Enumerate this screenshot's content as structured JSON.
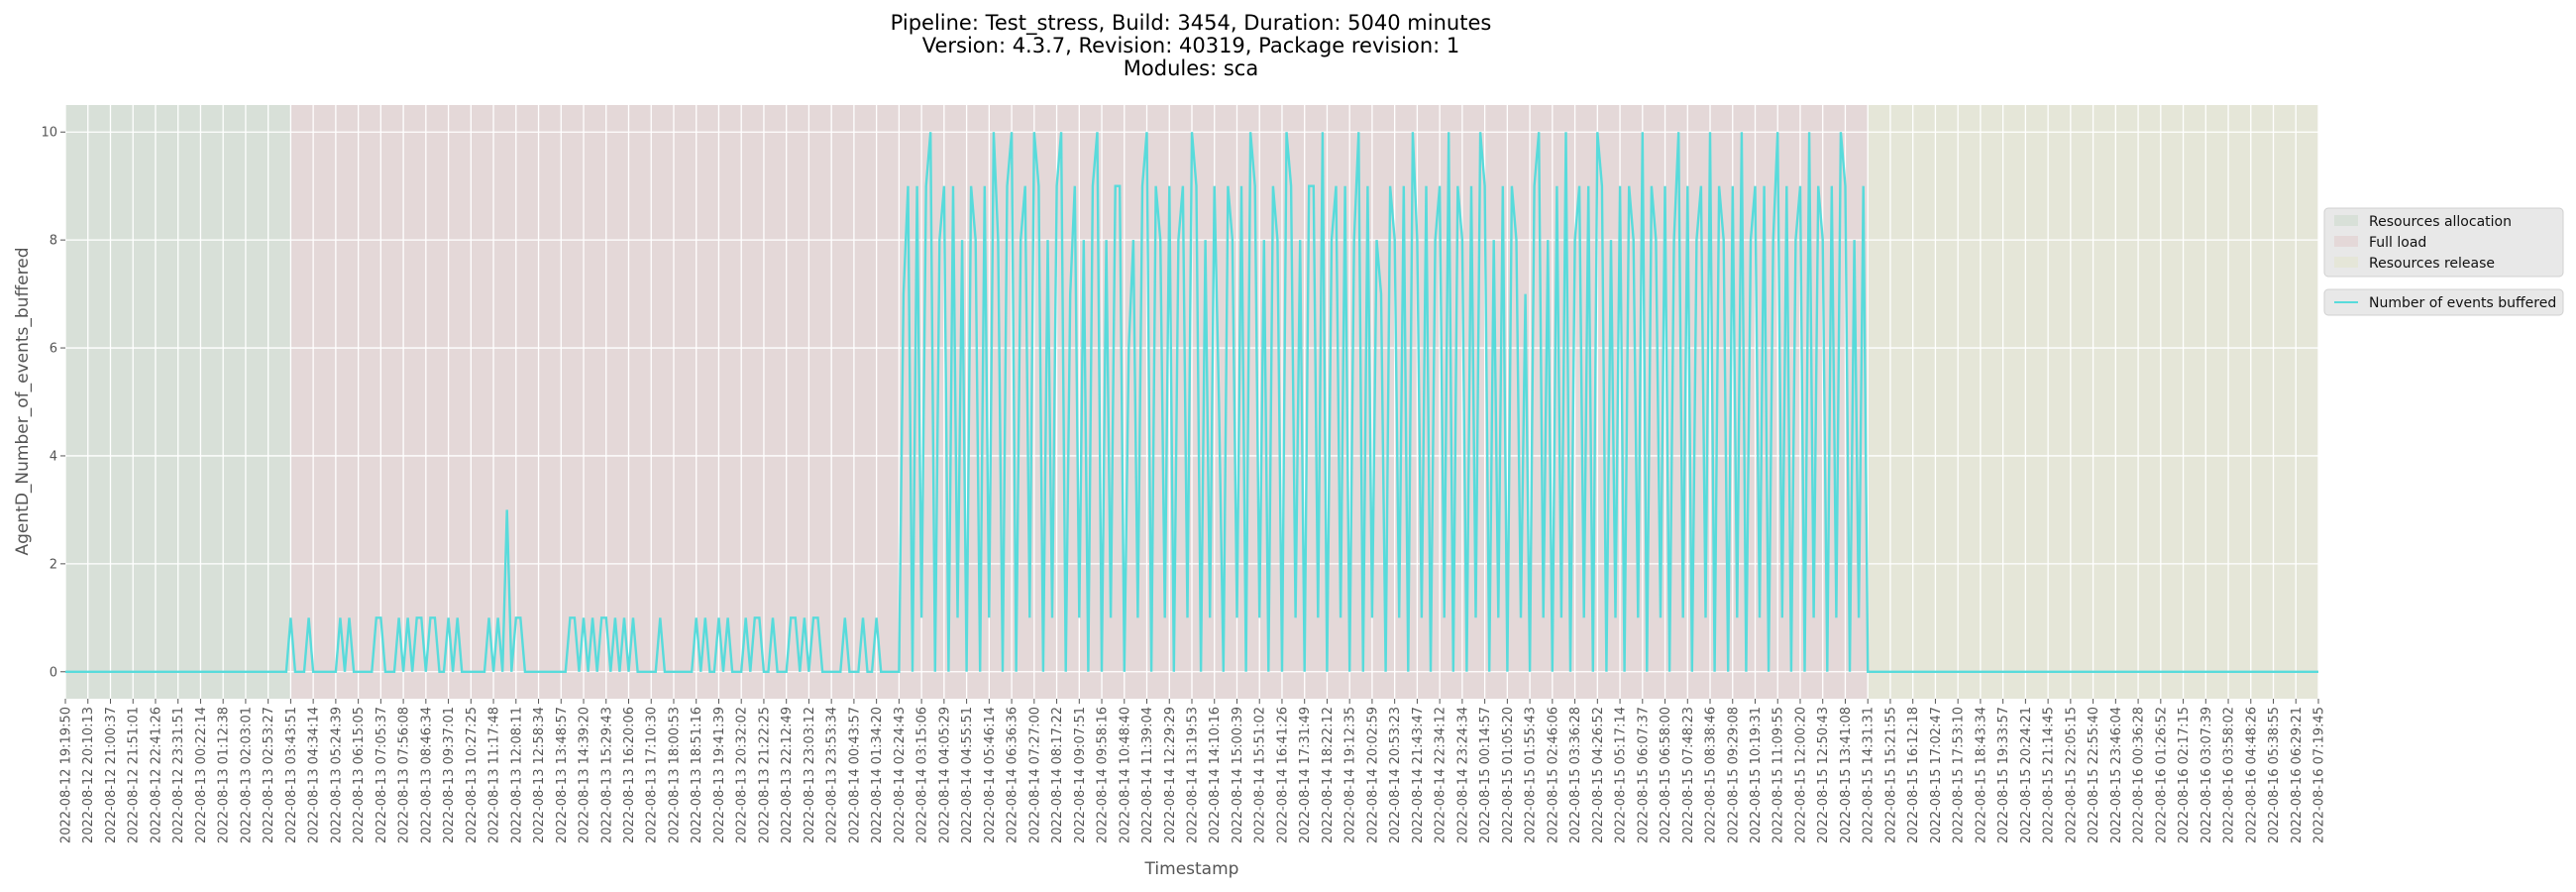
{
  "chart_data": {
    "type": "line",
    "title_lines": [
      "Pipeline: Test_stress, Build: 3454, Duration: 5040 minutes",
      "Version: 4.3.7, Revision: 40319, Package revision: 1",
      "Modules: sca"
    ],
    "xlabel": "Timestamp",
    "ylabel": "AgentD_Number_of_events_buffered",
    "ylim": [
      -0.5,
      10.5
    ],
    "yticks": [
      0,
      2,
      4,
      6,
      8,
      10
    ],
    "grid": true,
    "legend_placement": "center-right outside",
    "line_color": "#58dbdb",
    "x_tick_labels": [
      "2022-08-12 19:19:50",
      "2022-08-12 20:10:13",
      "2022-08-12 21:00:37",
      "2022-08-12 21:51:01",
      "2022-08-12 22:41:26",
      "2022-08-12 23:31:51",
      "2022-08-13 00:22:14",
      "2022-08-13 01:12:38",
      "2022-08-13 02:03:01",
      "2022-08-13 02:53:27",
      "2022-08-13 03:43:51",
      "2022-08-13 04:34:14",
      "2022-08-13 05:24:39",
      "2022-08-13 06:15:05",
      "2022-08-13 07:05:37",
      "2022-08-13 07:56:08",
      "2022-08-13 08:46:34",
      "2022-08-13 09:37:01",
      "2022-08-13 10:27:25",
      "2022-08-13 11:17:48",
      "2022-08-13 12:08:11",
      "2022-08-13 12:58:34",
      "2022-08-13 13:48:57",
      "2022-08-13 14:39:20",
      "2022-08-13 15:29:43",
      "2022-08-13 16:20:06",
      "2022-08-13 17:10:30",
      "2022-08-13 18:00:53",
      "2022-08-13 18:51:16",
      "2022-08-13 19:41:39",
      "2022-08-13 20:32:02",
      "2022-08-13 21:22:25",
      "2022-08-13 22:12:49",
      "2022-08-13 23:03:12",
      "2022-08-13 23:53:34",
      "2022-08-14 00:43:57",
      "2022-08-14 01:34:20",
      "2022-08-14 02:24:43",
      "2022-08-14 03:15:06",
      "2022-08-14 04:05:29",
      "2022-08-14 04:55:51",
      "2022-08-14 05:46:14",
      "2022-08-14 06:36:36",
      "2022-08-14 07:27:00",
      "2022-08-14 08:17:22",
      "2022-08-14 09:07:51",
      "2022-08-14 09:58:16",
      "2022-08-14 10:48:40",
      "2022-08-14 11:39:04",
      "2022-08-14 12:29:29",
      "2022-08-14 13:19:53",
      "2022-08-14 14:10:16",
      "2022-08-14 15:00:39",
      "2022-08-14 15:51:02",
      "2022-08-14 16:41:26",
      "2022-08-14 17:31:49",
      "2022-08-14 18:22:12",
      "2022-08-14 19:12:35",
      "2022-08-14 20:02:59",
      "2022-08-14 20:53:23",
      "2022-08-14 21:43:47",
      "2022-08-14 22:34:12",
      "2022-08-14 23:24:34",
      "2022-08-15 00:14:57",
      "2022-08-15 01:05:20",
      "2022-08-15 01:55:43",
      "2022-08-15 02:46:06",
      "2022-08-15 03:36:28",
      "2022-08-15 04:26:52",
      "2022-08-15 05:17:14",
      "2022-08-15 06:07:37",
      "2022-08-15 06:58:00",
      "2022-08-15 07:48:23",
      "2022-08-15 08:38:46",
      "2022-08-15 09:29:08",
      "2022-08-15 10:19:31",
      "2022-08-15 11:09:55",
      "2022-08-15 12:00:20",
      "2022-08-15 12:50:43",
      "2022-08-15 13:41:08",
      "2022-08-15 14:31:31",
      "2022-08-15 15:21:55",
      "2022-08-15 16:12:18",
      "2022-08-15 17:02:47",
      "2022-08-15 17:53:10",
      "2022-08-15 18:43:34",
      "2022-08-15 19:33:57",
      "2022-08-15 20:24:21",
      "2022-08-15 21:14:45",
      "2022-08-15 22:05:15",
      "2022-08-15 22:55:40",
      "2022-08-15 23:46:04",
      "2022-08-16 00:36:28",
      "2022-08-16 01:26:52",
      "2022-08-16 02:17:15",
      "2022-08-16 03:07:39",
      "2022-08-16 03:58:02",
      "2022-08-16 04:48:26",
      "2022-08-16 05:38:55",
      "2022-08-16 06:29:21",
      "2022-08-16 07:19:45"
    ],
    "phases": [
      {
        "name": "Resources allocation",
        "from": "2022-08-12 19:19:50",
        "to": "2022-08-13 03:43:51",
        "color": "#d8e0d8"
      },
      {
        "name": "Full load",
        "from": "2022-08-13 03:43:51",
        "to": "2022-08-15 14:31:31",
        "color": "#e4d8d8"
      },
      {
        "name": "Resources release",
        "from": "2022-08-15 14:31:31",
        "to": "2022-08-16 07:19:45",
        "color": "#e5e6d8"
      }
    ],
    "series": [
      {
        "name": "Number of events buffered",
        "values": [
          0,
          0,
          0,
          0,
          0,
          0,
          0,
          0,
          0,
          0,
          0,
          0,
          0,
          0,
          0,
          0,
          0,
          0,
          0,
          0,
          0,
          0,
          0,
          0,
          0,
          0,
          0,
          0,
          0,
          0,
          0,
          0,
          0,
          0,
          0,
          0,
          0,
          0,
          0,
          0,
          0,
          0,
          0,
          0,
          0,
          0,
          0,
          0,
          0,
          0,
          1,
          0,
          0,
          0,
          1,
          0,
          0,
          0,
          0,
          0,
          0,
          1,
          0,
          1,
          0,
          0,
          0,
          0,
          0,
          1,
          1,
          0,
          0,
          0,
          1,
          0,
          1,
          0,
          1,
          1,
          0,
          1,
          1,
          0,
          0,
          1,
          0,
          1,
          0,
          0,
          0,
          0,
          0,
          0,
          1,
          0,
          1,
          0,
          3,
          0,
          1,
          1,
          0,
          0,
          0,
          0,
          0,
          0,
          0,
          0,
          0,
          0,
          1,
          1,
          0,
          1,
          0,
          1,
          0,
          1,
          1,
          0,
          1,
          0,
          1,
          0,
          1,
          0,
          0,
          0,
          0,
          0,
          1,
          0,
          0,
          0,
          0,
          0,
          0,
          0,
          1,
          0,
          1,
          0,
          0,
          1,
          0,
          1,
          0,
          0,
          0,
          1,
          0,
          1,
          1,
          0,
          0,
          1,
          0,
          0,
          0,
          1,
          1,
          0,
          1,
          0,
          1,
          1,
          0,
          0,
          0,
          0,
          0,
          1,
          0,
          0,
          0,
          1,
          0,
          0,
          1,
          0,
          0,
          0,
          0,
          0,
          7,
          9,
          0,
          9,
          1,
          9,
          10,
          0,
          8,
          9,
          0,
          9,
          1,
          8,
          0,
          9,
          8,
          0,
          9,
          1,
          10,
          8,
          0,
          9,
          10,
          0,
          8,
          9,
          1,
          10,
          9,
          0,
          8,
          1,
          9,
          10,
          0,
          7,
          9,
          1,
          8,
          0,
          9,
          10,
          0,
          8,
          1,
          9,
          9,
          0,
          6,
          8,
          1,
          9,
          10,
          0,
          9,
          8,
          1,
          9,
          0,
          8,
          9,
          1,
          10,
          9,
          0,
          8,
          1,
          9,
          5,
          0,
          9,
          8,
          1,
          9,
          0,
          10,
          9,
          1,
          8,
          0,
          9,
          8,
          0,
          10,
          9,
          1,
          8,
          0,
          9,
          9,
          1,
          10,
          0,
          8,
          9,
          1,
          9,
          0,
          8,
          10,
          0,
          9,
          1,
          8,
          7,
          0,
          9,
          8,
          1,
          9,
          0,
          10,
          8,
          1,
          9,
          0,
          8,
          9,
          1,
          10,
          0,
          9,
          8,
          0,
          9,
          1,
          10,
          9,
          0,
          8,
          1,
          9,
          0,
          9,
          8,
          1,
          7,
          0,
          9,
          10,
          1,
          8,
          0,
          9,
          1,
          10,
          0,
          8,
          9,
          1,
          9,
          0,
          10,
          9,
          0,
          8,
          1,
          9,
          0,
          9,
          8,
          1,
          10,
          0,
          9,
          8,
          1,
          9,
          0,
          8,
          10,
          1,
          9,
          0,
          8,
          9,
          1,
          10,
          0,
          9,
          8,
          0,
          9,
          1,
          10,
          0,
          8,
          9,
          1,
          9,
          0,
          8,
          10,
          1,
          9,
          0,
          8,
          9,
          0,
          10,
          1,
          9,
          8,
          0,
          9,
          1,
          10,
          9,
          0,
          8,
          1,
          9,
          0,
          0,
          0,
          0,
          0,
          0,
          0,
          0,
          0,
          0,
          0,
          0,
          0,
          0,
          0,
          0,
          0,
          0,
          0,
          0,
          0,
          0,
          0,
          0,
          0,
          0,
          0,
          0,
          0,
          0,
          0,
          0,
          0,
          0,
          0,
          0,
          0,
          0,
          0,
          0,
          0,
          0,
          0,
          0,
          0,
          0,
          0,
          0,
          0,
          0,
          0,
          0,
          0,
          0,
          0,
          0,
          0,
          0,
          0,
          0,
          0,
          0,
          0,
          0,
          0,
          0,
          0,
          0,
          0,
          0,
          0,
          0,
          0,
          0,
          0,
          0,
          0,
          0,
          0,
          0,
          0,
          0,
          0,
          0,
          0,
          0,
          0,
          0,
          0,
          0,
          0,
          0,
          0,
          0,
          0,
          0,
          0,
          0,
          0,
          0,
          0
        ]
      }
    ]
  }
}
